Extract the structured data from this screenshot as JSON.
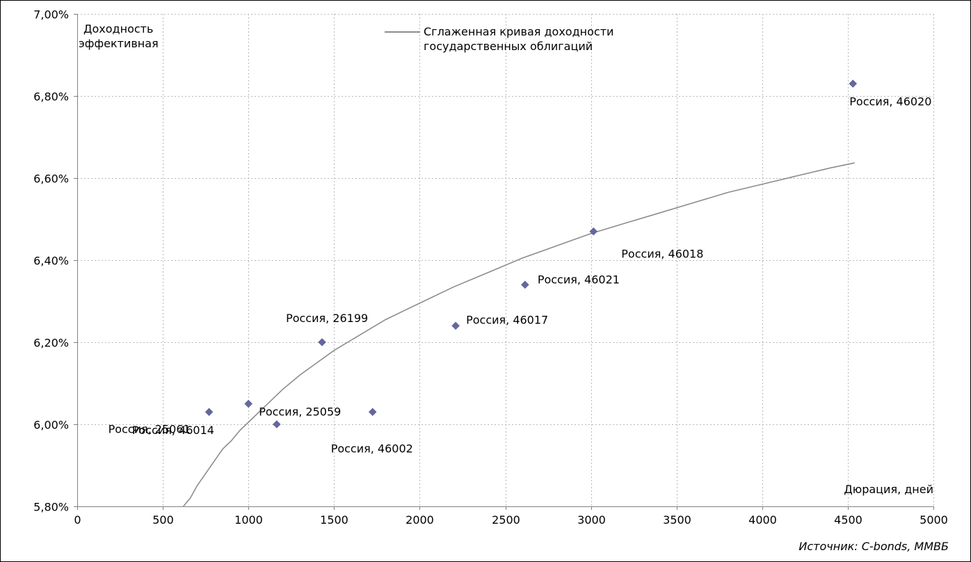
{
  "chart_data": {
    "type": "scatter",
    "ylabel": "Доходность эффективная",
    "ylabel_lines": [
      "Доходность",
      "эффективная"
    ],
    "xlabel": "Дюрация, дней",
    "source": "Источник: C-bonds, ММВБ",
    "xlim": [
      0,
      5000
    ],
    "ylim": [
      5.8,
      7.0
    ],
    "x_ticks": [
      0,
      500,
      1000,
      1500,
      2000,
      2500,
      3000,
      3500,
      4000,
      4500,
      5000
    ],
    "x_tick_labels": [
      "0",
      "500",
      "1000",
      "1500",
      "2000",
      "2500",
      "3000",
      "3500",
      "4000",
      "4500",
      "5000"
    ],
    "y_ticks": [
      5.8,
      6.0,
      6.2,
      6.4,
      6.6,
      6.8,
      7.0
    ],
    "y_tick_labels": [
      "5,80%",
      "6,00%",
      "6,20%",
      "6,40%",
      "6,60%",
      "6,80%",
      "7,00%"
    ],
    "grid": true,
    "legend_position": "top-center",
    "colors": {
      "points": "#6666a0",
      "curve": "#8c8c8c",
      "grid": "#b8b8b8",
      "axis": "#808080"
    },
    "series": [
      {
        "type": "scatter",
        "points": [
          {
            "x": 770,
            "y": 6.03,
            "label": "Россия, 25061"
          },
          {
            "x": 1000,
            "y": 6.05,
            "label": "Россия, 25059"
          },
          {
            "x": 1165,
            "y": 6.0,
            "label": "Россия, 46014"
          },
          {
            "x": 1430,
            "y": 6.2,
            "label": "Россия, 26199"
          },
          {
            "x": 1725,
            "y": 6.03,
            "label": "Россия, 46002"
          },
          {
            "x": 2210,
            "y": 6.24,
            "label": "Россия, 46017"
          },
          {
            "x": 2615,
            "y": 6.34,
            "label": "Россия, 46021"
          },
          {
            "x": 3015,
            "y": 6.47,
            "label": "Россия, 46018"
          },
          {
            "x": 4530,
            "y": 6.83,
            "label": "Россия, 46020"
          }
        ]
      },
      {
        "type": "line",
        "name": "Сглаженная кривая доходности государственных облигаций",
        "name_lines": [
          "Сглаженная кривая доходности",
          "государственных облигаций"
        ],
        "x": [
          620,
          660,
          700,
          750,
          800,
          850,
          900,
          950,
          1000,
          1100,
          1200,
          1300,
          1400,
          1500,
          1600,
          1700,
          1800,
          1900,
          2000,
          2200,
          2400,
          2600,
          2800,
          3000,
          3200,
          3400,
          3600,
          3800,
          4000,
          4200,
          4400,
          4540
        ],
        "y": [
          5.8,
          5.82,
          5.85,
          5.88,
          5.91,
          5.94,
          5.96,
          5.985,
          6.005,
          6.045,
          6.085,
          6.12,
          6.15,
          6.18,
          6.205,
          6.23,
          6.255,
          6.275,
          6.295,
          6.335,
          6.37,
          6.405,
          6.435,
          6.465,
          6.49,
          6.515,
          6.54,
          6.565,
          6.585,
          6.605,
          6.625,
          6.637
        ]
      }
    ]
  }
}
